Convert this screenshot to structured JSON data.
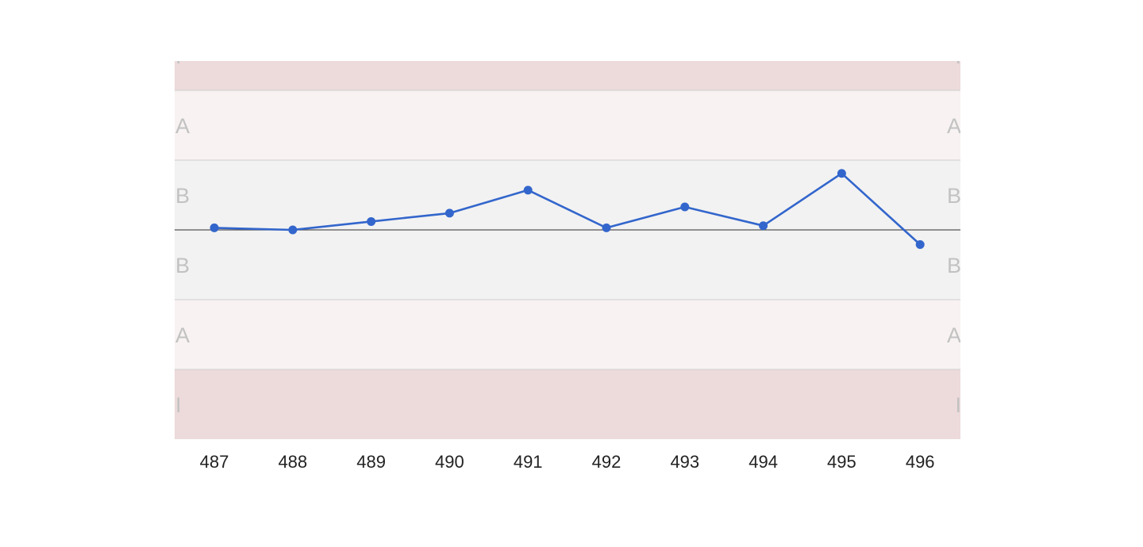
{
  "chart_data": {
    "type": "line",
    "title": "",
    "xlabel": "",
    "ylabel": "",
    "x": [
      "487",
      "488",
      "489",
      "490",
      "491",
      "492",
      "493",
      "494",
      "495",
      "496"
    ],
    "series": [
      {
        "values": [
          0.03,
          0.0,
          0.12,
          0.24,
          0.57,
          0.03,
          0.33,
          0.06,
          0.81,
          -0.21
        ],
        "color": "#3366cc"
      }
    ],
    "ylim": [
      -3,
      2.55
    ],
    "center_line": 0,
    "zones": [
      {
        "label": "I",
        "from": 2,
        "to": 3,
        "color": "#eddadb"
      },
      {
        "label": "A",
        "from": 1,
        "to": 2,
        "color": "#f8f2f2"
      },
      {
        "label": "B",
        "from": 0,
        "to": 1,
        "color": "#f2f2f2"
      },
      {
        "label": "B",
        "from": -1,
        "to": 0,
        "color": "#f2f2f2"
      },
      {
        "label": "A",
        "from": -2,
        "to": -1,
        "color": "#f8f2f2"
      },
      {
        "label": "I",
        "from": -3,
        "to": -2,
        "color": "#eddadb"
      }
    ],
    "grid": false,
    "legend": "none"
  }
}
